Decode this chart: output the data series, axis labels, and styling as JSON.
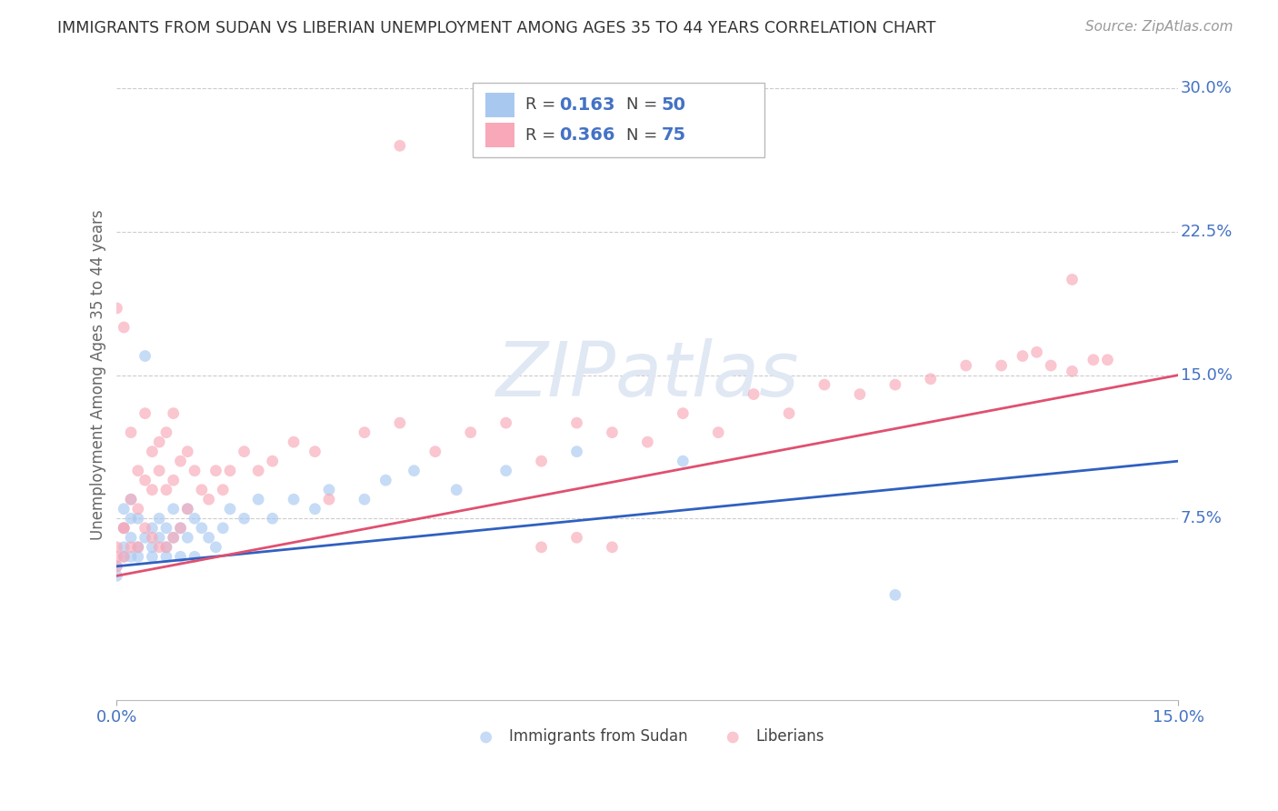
{
  "title": "IMMIGRANTS FROM SUDAN VS LIBERIAN UNEMPLOYMENT AMONG AGES 35 TO 44 YEARS CORRELATION CHART",
  "source": "Source: ZipAtlas.com",
  "ylabel": "Unemployment Among Ages 35 to 44 years",
  "xlim": [
    0.0,
    0.15
  ],
  "ylim": [
    -0.02,
    0.32
  ],
  "ytick_vals": [
    0.075,
    0.15,
    0.225,
    0.3
  ],
  "ytick_labels": [
    "7.5%",
    "15.0%",
    "22.5%",
    "30.0%"
  ],
  "xtick_vals": [
    0.0,
    0.15
  ],
  "xtick_labels": [
    "0.0%",
    "15.0%"
  ],
  "legend_entries": [
    {
      "label": "Immigrants from Sudan",
      "color": "#a8c8f0",
      "R": 0.163,
      "N": 50
    },
    {
      "label": "Liberians",
      "color": "#f8a8b8",
      "R": 0.366,
      "N": 75
    }
  ],
  "watermark": "ZIPatlas",
  "background_color": "#ffffff",
  "grid_color": "#cccccc",
  "title_color": "#333333",
  "tick_label_color": "#4472c4",
  "blue_line_color": "#3060c0",
  "pink_line_color": "#e05070",
  "blue_line_y0": 0.05,
  "blue_line_y1": 0.105,
  "pink_line_y0": 0.045,
  "pink_line_y1": 0.15,
  "scatter_alpha": 0.65,
  "scatter_size": 85,
  "blue_points_x": [
    0.0,
    0.0,
    0.001,
    0.001,
    0.001,
    0.001,
    0.002,
    0.002,
    0.002,
    0.002,
    0.003,
    0.003,
    0.003,
    0.004,
    0.004,
    0.005,
    0.005,
    0.005,
    0.006,
    0.006,
    0.007,
    0.007,
    0.007,
    0.008,
    0.008,
    0.009,
    0.009,
    0.01,
    0.01,
    0.011,
    0.011,
    0.012,
    0.013,
    0.014,
    0.015,
    0.016,
    0.018,
    0.02,
    0.022,
    0.025,
    0.028,
    0.03,
    0.035,
    0.038,
    0.042,
    0.048,
    0.055,
    0.065,
    0.08,
    0.11
  ],
  "blue_points_y": [
    0.05,
    0.045,
    0.06,
    0.07,
    0.055,
    0.08,
    0.065,
    0.055,
    0.075,
    0.085,
    0.06,
    0.075,
    0.055,
    0.16,
    0.065,
    0.07,
    0.06,
    0.055,
    0.075,
    0.065,
    0.07,
    0.06,
    0.055,
    0.065,
    0.08,
    0.07,
    0.055,
    0.08,
    0.065,
    0.075,
    0.055,
    0.07,
    0.065,
    0.06,
    0.07,
    0.08,
    0.075,
    0.085,
    0.075,
    0.085,
    0.08,
    0.09,
    0.085,
    0.095,
    0.1,
    0.09,
    0.1,
    0.11,
    0.105,
    0.035
  ],
  "pink_points_x": [
    0.0,
    0.0,
    0.0,
    0.001,
    0.001,
    0.001,
    0.002,
    0.002,
    0.002,
    0.003,
    0.003,
    0.003,
    0.004,
    0.004,
    0.004,
    0.005,
    0.005,
    0.005,
    0.006,
    0.006,
    0.006,
    0.007,
    0.007,
    0.007,
    0.008,
    0.008,
    0.008,
    0.009,
    0.009,
    0.01,
    0.01,
    0.011,
    0.012,
    0.013,
    0.014,
    0.015,
    0.016,
    0.018,
    0.02,
    0.022,
    0.025,
    0.028,
    0.03,
    0.035,
    0.04,
    0.045,
    0.05,
    0.055,
    0.06,
    0.065,
    0.07,
    0.075,
    0.08,
    0.085,
    0.09,
    0.095,
    0.1,
    0.105,
    0.11,
    0.115,
    0.12,
    0.125,
    0.128,
    0.13,
    0.132,
    0.135,
    0.138,
    0.14,
    0.0,
    0.001,
    0.06,
    0.065,
    0.07,
    0.135,
    0.04
  ],
  "pink_points_y": [
    0.06,
    0.185,
    0.055,
    0.07,
    0.175,
    0.055,
    0.085,
    0.12,
    0.06,
    0.1,
    0.08,
    0.06,
    0.13,
    0.095,
    0.07,
    0.11,
    0.09,
    0.065,
    0.115,
    0.1,
    0.06,
    0.12,
    0.09,
    0.06,
    0.13,
    0.095,
    0.065,
    0.105,
    0.07,
    0.11,
    0.08,
    0.1,
    0.09,
    0.085,
    0.1,
    0.09,
    0.1,
    0.11,
    0.1,
    0.105,
    0.115,
    0.11,
    0.085,
    0.12,
    0.125,
    0.11,
    0.12,
    0.125,
    0.105,
    0.125,
    0.12,
    0.115,
    0.13,
    0.12,
    0.14,
    0.13,
    0.145,
    0.14,
    0.145,
    0.148,
    0.155,
    0.155,
    0.16,
    0.162,
    0.155,
    0.152,
    0.158,
    0.158,
    0.05,
    0.07,
    0.06,
    0.065,
    0.06,
    0.2,
    0.27
  ]
}
